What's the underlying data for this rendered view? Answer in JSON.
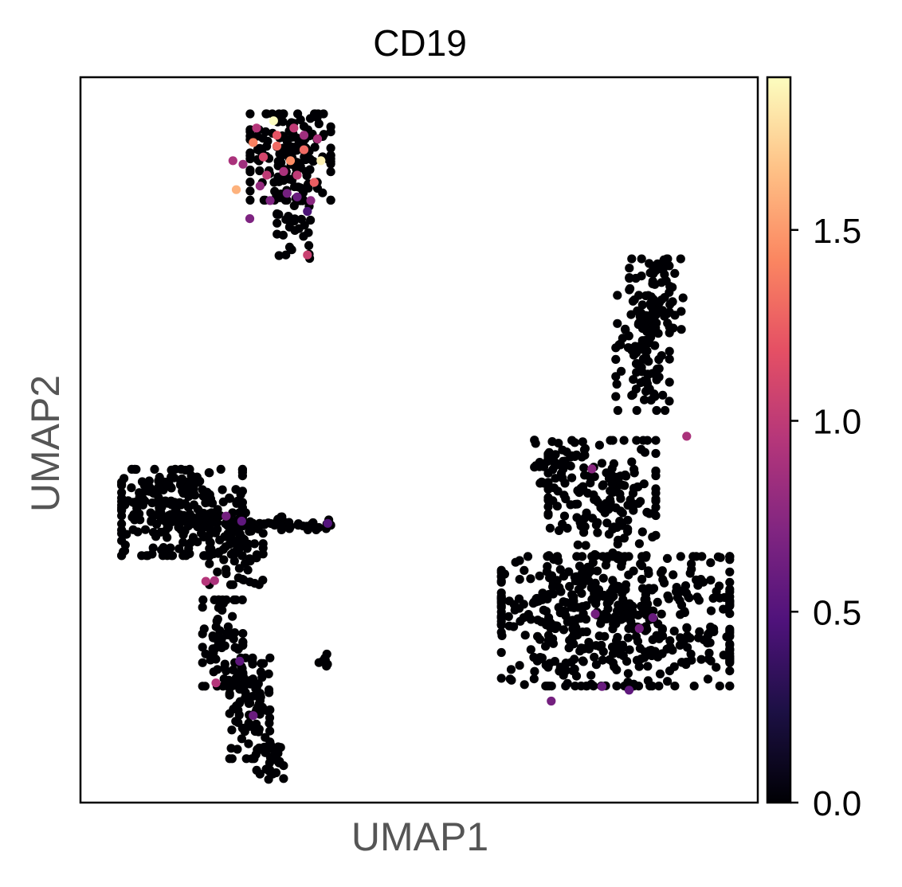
{
  "chart_data": {
    "type": "scatter",
    "title": "CD19",
    "xlabel": "UMAP1",
    "ylabel": "UMAP2",
    "xticks": false,
    "yticks": false,
    "grid": false,
    "colormap": "magma",
    "colorbar": {
      "min": 0.0,
      "max": 1.9,
      "ticks": [
        0.0,
        0.5,
        1.0,
        1.5
      ],
      "tick_labels": [
        "0.0",
        "0.5",
        "1.0",
        "1.5"
      ],
      "placement": "right"
    },
    "xlim": [
      0,
      100
    ],
    "ylim": [
      0,
      100
    ],
    "clusters": [
      {
        "base_value": 0,
        "blobs": [
          {
            "x": 31,
            "y": 89,
            "rx": 6,
            "ry": 6,
            "n": 160
          },
          {
            "x": 32,
            "y": 79,
            "rx": 3,
            "ry": 4,
            "n": 30
          }
        ],
        "highlights": [
          {
            "x": 28.5,
            "y": 94,
            "v": 1.9
          },
          {
            "x": 35.5,
            "y": 88.5,
            "v": 1.85
          },
          {
            "x": 23,
            "y": 84.5,
            "v": 1.6
          },
          {
            "x": 25.5,
            "y": 91,
            "v": 1.4
          },
          {
            "x": 29,
            "y": 90.5,
            "v": 1.3
          },
          {
            "x": 33,
            "y": 90,
            "v": 1.3
          },
          {
            "x": 34.5,
            "y": 85.5,
            "v": 1.25
          },
          {
            "x": 31.5,
            "y": 93,
            "v": 1.0
          },
          {
            "x": 27,
            "y": 89,
            "v": 1.1
          },
          {
            "x": 30,
            "y": 87,
            "v": 0.9
          },
          {
            "x": 24,
            "y": 88,
            "v": 0.85
          },
          {
            "x": 26.5,
            "y": 85,
            "v": 0.8
          },
          {
            "x": 33,
            "y": 92,
            "v": 0.85
          },
          {
            "x": 32,
            "y": 86.5,
            "v": 1.0
          },
          {
            "x": 28,
            "y": 83,
            "v": 0.7
          },
          {
            "x": 30.5,
            "y": 84,
            "v": 0.65
          },
          {
            "x": 34,
            "y": 83,
            "v": 0.75
          },
          {
            "x": 25,
            "y": 80.5,
            "v": 0.7
          },
          {
            "x": 22.5,
            "y": 88.5,
            "v": 0.9
          },
          {
            "x": 29,
            "y": 92,
            "v": 1.2
          },
          {
            "x": 31,
            "y": 88.5,
            "v": 1.45
          },
          {
            "x": 27.5,
            "y": 86.5,
            "v": 1.0
          },
          {
            "x": 33.5,
            "y": 81.5,
            "v": 0.45
          },
          {
            "x": 33.5,
            "y": 75.5,
            "v": 1.05
          },
          {
            "x": 35,
            "y": 91.5,
            "v": 0.9
          },
          {
            "x": 26,
            "y": 93,
            "v": 0.95
          },
          {
            "x": 32,
            "y": 83.5,
            "v": 0.6
          }
        ]
      },
      {
        "base_value": 0,
        "blobs": [
          {
            "x": 15,
            "y": 40,
            "rx": 9,
            "ry": 6,
            "n": 260
          },
          {
            "x": 23,
            "y": 35,
            "rx": 4,
            "ry": 5,
            "n": 80
          },
          {
            "x": 21,
            "y": 22,
            "rx": 3,
            "ry": 6,
            "n": 70
          },
          {
            "x": 25,
            "y": 13,
            "rx": 3,
            "ry": 7,
            "n": 90
          },
          {
            "x": 28,
            "y": 6,
            "rx": 2,
            "ry": 3,
            "n": 30
          },
          {
            "x": 31,
            "y": 38.5,
            "rx": 6,
            "ry": 0.9,
            "n": 45
          },
          {
            "x": 36,
            "y": 20,
            "rx": 0.8,
            "ry": 1.2,
            "n": 8
          }
        ],
        "highlights": [
          {
            "x": 21.5,
            "y": 39.5,
            "v": 0.65
          },
          {
            "x": 23.8,
            "y": 38.8,
            "v": 0.55
          },
          {
            "x": 36.5,
            "y": 38.5,
            "v": 0.5
          },
          {
            "x": 18.5,
            "y": 30.5,
            "v": 0.95
          },
          {
            "x": 19.8,
            "y": 30.6,
            "v": 0.9
          },
          {
            "x": 23.5,
            "y": 19.5,
            "v": 0.55
          },
          {
            "x": 20,
            "y": 16.5,
            "v": 0.95
          },
          {
            "x": 25.5,
            "y": 12,
            "v": 0.6
          }
        ]
      },
      {
        "base_value": 0,
        "blobs": [
          {
            "x": 79,
            "y": 25,
            "rx": 17,
            "ry": 9,
            "n": 520
          },
          {
            "x": 77,
            "y": 42,
            "rx": 8,
            "ry": 8,
            "n": 170
          },
          {
            "x": 83,
            "y": 62,
            "rx": 4,
            "ry": 8,
            "n": 100
          },
          {
            "x": 85,
            "y": 70,
            "rx": 4,
            "ry": 5,
            "n": 70
          },
          {
            "x": 70,
            "y": 47,
            "rx": 3,
            "ry": 3,
            "n": 30
          }
        ],
        "highlights": [
          {
            "x": 89.5,
            "y": 50.5,
            "v": 0.9
          },
          {
            "x": 75.5,
            "y": 46,
            "v": 0.75
          },
          {
            "x": 76,
            "y": 26,
            "v": 0.65
          },
          {
            "x": 82.5,
            "y": 24,
            "v": 0.65
          },
          {
            "x": 84.5,
            "y": 25.5,
            "v": 0.6
          },
          {
            "x": 69.5,
            "y": 14,
            "v": 0.65
          },
          {
            "x": 77,
            "y": 16,
            "v": 0.6
          },
          {
            "x": 81,
            "y": 15.5,
            "v": 0.55
          }
        ]
      }
    ]
  }
}
